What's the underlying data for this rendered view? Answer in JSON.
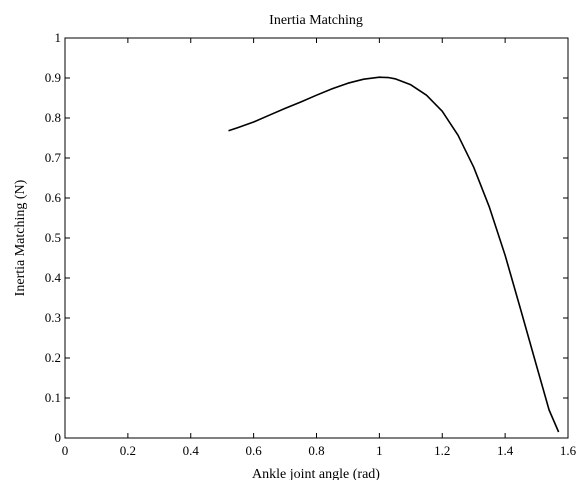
{
  "chart_data": {
    "type": "line",
    "title": "Inertia Matching",
    "xlabel": "Ankle joint angle (rad)",
    "ylabel": "Inertia Matching (N)",
    "xlim": [
      0,
      1.6
    ],
    "ylim": [
      0,
      1
    ],
    "xticks": [
      "0",
      "0.2",
      "0.4",
      "0.6",
      "0.8",
      "1",
      "1.2",
      "1.4",
      "1.6"
    ],
    "yticks": [
      "0",
      "0.1",
      "0.2",
      "0.3",
      "0.4",
      "0.5",
      "0.6",
      "0.7",
      "0.8",
      "0.9",
      "1"
    ],
    "grid": false,
    "legend": "none",
    "line_color": "#000000",
    "series": [
      {
        "x": [
          0.52,
          0.55,
          0.6,
          0.65,
          0.7,
          0.75,
          0.8,
          0.85,
          0.9,
          0.95,
          1.0,
          1.03,
          1.05,
          1.1,
          1.15,
          1.2,
          1.25,
          1.3,
          1.35,
          1.4,
          1.45,
          1.5,
          1.54,
          1.57
        ],
        "y": [
          0.768,
          0.776,
          0.79,
          0.807,
          0.824,
          0.84,
          0.857,
          0.873,
          0.887,
          0.897,
          0.902,
          0.901,
          0.898,
          0.883,
          0.857,
          0.817,
          0.757,
          0.677,
          0.577,
          0.457,
          0.32,
          0.18,
          0.07,
          0.015
        ]
      }
    ]
  }
}
